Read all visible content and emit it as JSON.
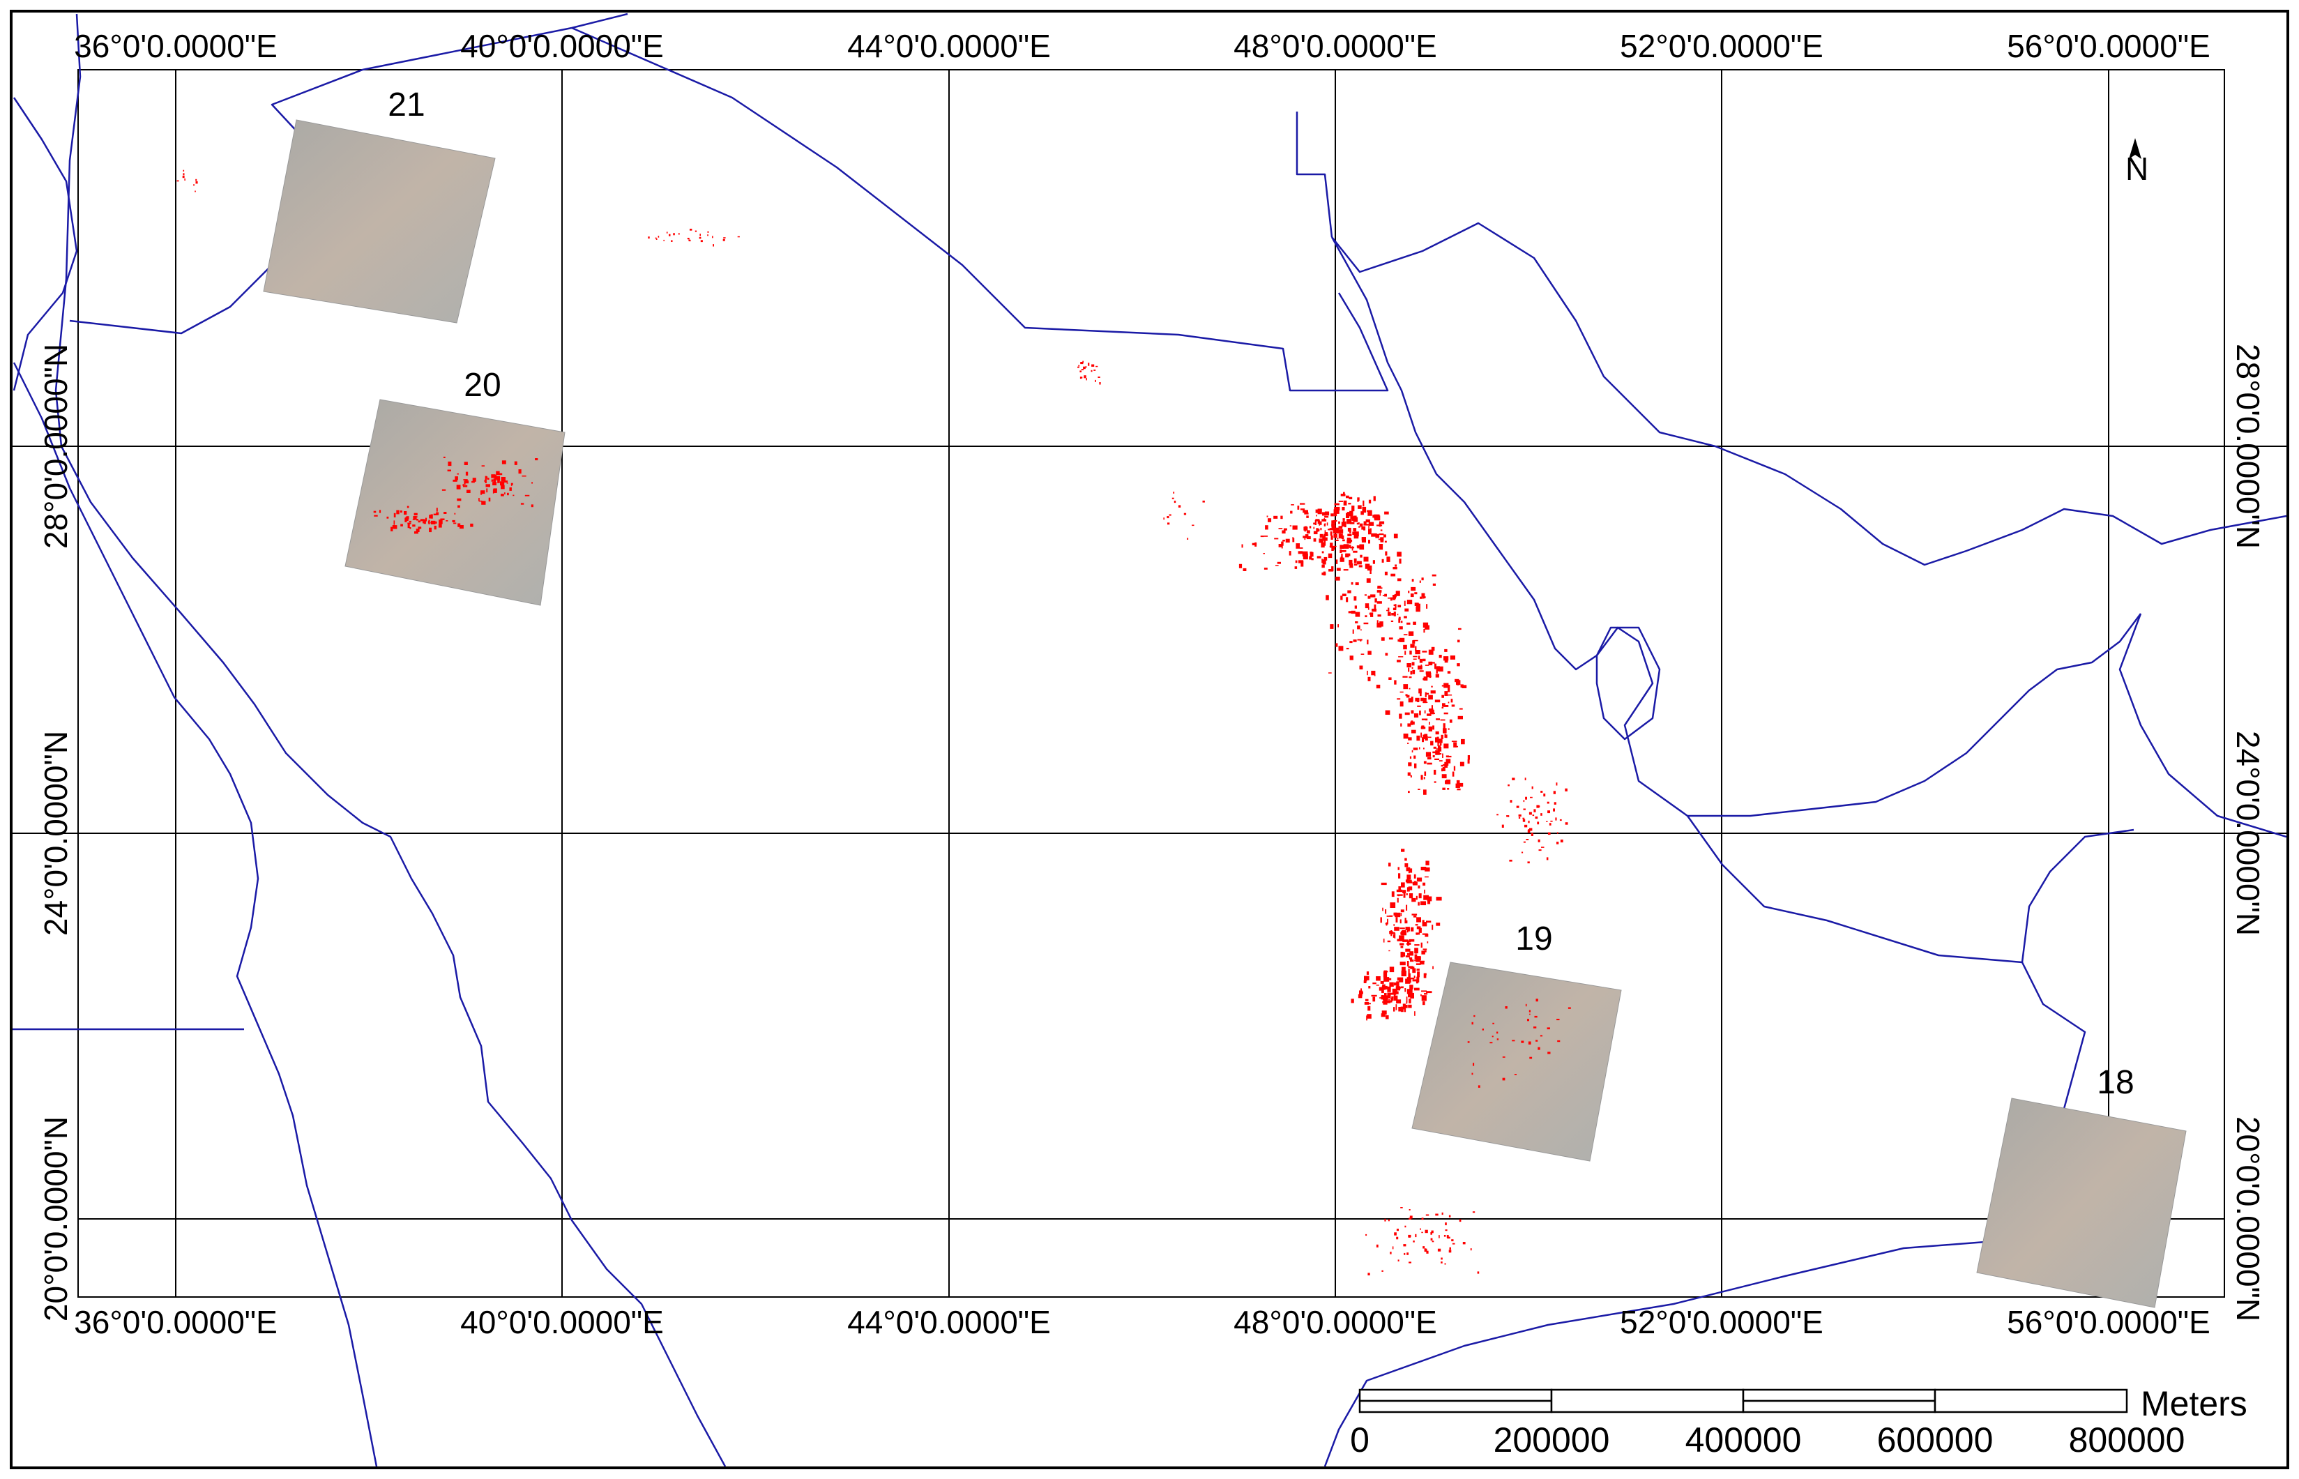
{
  "map": {
    "longitude_labels": [
      "36°0'0.0000\"E",
      "40°0'0.0000\"E",
      "44°0'0.0000\"E",
      "48°0'0.0000\"E",
      "52°0'0.0000\"E",
      "56°0'0.0000\"E"
    ],
    "latitude_labels": [
      "28°0'0.0000\"N",
      "24°0'0.0000\"N",
      "20°0'0.0000\"N"
    ],
    "scene_labels": [
      "21",
      "20",
      "19",
      "18"
    ],
    "north_arrow_label": "N",
    "scale_bar": {
      "ticks": [
        "0",
        "200000",
        "400000",
        "600000",
        "800000"
      ],
      "unit": "Meters"
    },
    "colors": {
      "boundary": "#1a1aa6",
      "hotspot": "#ff0000",
      "grid": "#000000",
      "scene_fill": "#b8b2aa"
    }
  }
}
